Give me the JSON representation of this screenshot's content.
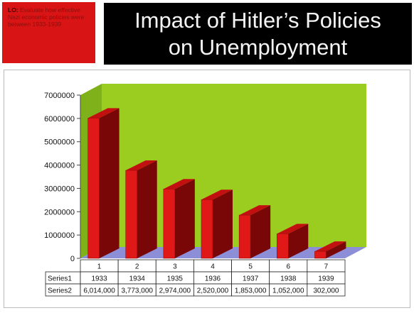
{
  "lo": {
    "label": "LO:",
    "text": "Evaluate how effective Nazi economic policies were between 1933-1939"
  },
  "header": {
    "title_line1": "Impact of Hitler’s Policies",
    "title_line2": "on Unemployment"
  },
  "colors": {
    "plot_bg": "#9acd20",
    "bar_front": "#e01818",
    "bar_top": "#c21010",
    "bar_side": "#7a0707",
    "floor": "#8c8fd8"
  },
  "chart_data": {
    "type": "bar",
    "categories": [
      "1",
      "2",
      "3",
      "4",
      "5",
      "6",
      "7"
    ],
    "series": [
      {
        "name": "Series1",
        "values": [
          1933,
          1934,
          1935,
          1936,
          1937,
          1938,
          1939
        ]
      },
      {
        "name": "Series2",
        "values": [
          6014000,
          3773000,
          2974000,
          2520000,
          1853000,
          1052000,
          302000
        ]
      }
    ],
    "table": {
      "rows": [
        {
          "label": "Series1",
          "cells": [
            "1933",
            "1934",
            "1935",
            "1936",
            "1937",
            "1938",
            "1939"
          ]
        },
        {
          "label": "Series2",
          "cells": [
            "6,014,000",
            "3,773,000",
            "2,974,000",
            "2,520,000",
            "1,853,000",
            "1,052,000",
            "302,000"
          ]
        }
      ]
    },
    "y_ticks": [
      "7000000",
      "6000000",
      "5000000",
      "4000000",
      "3000000",
      "2000000",
      "1000000",
      "0"
    ],
    "ylim": [
      0,
      7000000
    ],
    "grid": false,
    "legend": "data table"
  }
}
